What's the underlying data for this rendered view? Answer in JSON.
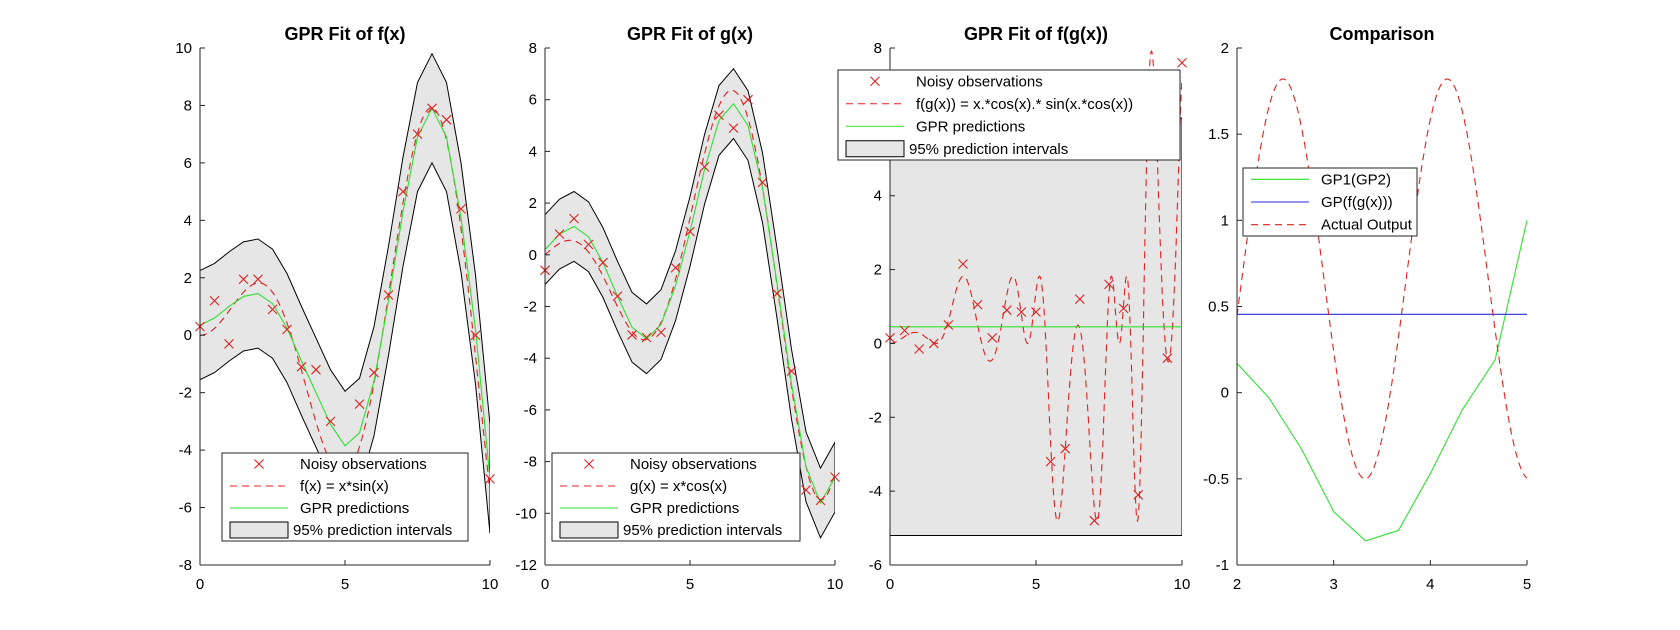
{
  "figure": {
    "colors": {
      "observation": "#e0201f",
      "actual": "#e0201f",
      "gpr": "#2fe02f",
      "band": "#e6e6e6",
      "gp_blue": "#2a2ae0"
    }
  },
  "chart_data": [
    {
      "type": "line",
      "title": "GPR Fit of f(x)",
      "xlim": [
        0,
        10
      ],
      "ylim": [
        -8,
        10
      ],
      "xticks": [
        0,
        5,
        10
      ],
      "yticks": [
        -8,
        -6,
        -4,
        -2,
        0,
        2,
        4,
        6,
        8,
        10
      ],
      "legend_location": "bottom",
      "series": [
        {
          "name": "Noisy observations",
          "style": "markers-x",
          "x": [
            0,
            0.5,
            1,
            1.5,
            2,
            2.5,
            3,
            3.5,
            4,
            4.5,
            5,
            5.5,
            6,
            6.5,
            7,
            7.5,
            8,
            8.5,
            9,
            9.5,
            10
          ],
          "y": [
            0.3,
            1.2,
            -0.3,
            1.95,
            1.95,
            0.9,
            0.2,
            -1.1,
            -1.2,
            -3.0,
            -4.5,
            -2.4,
            -1.3,
            1.4,
            5.0,
            7.0,
            7.9,
            7.5,
            4.4,
            0.0,
            -5.0
          ]
        },
        {
          "name": "f(x) = x*sin(x)",
          "style": "dashed",
          "fn": "f"
        },
        {
          "name": "GPR predictions",
          "style": "solid",
          "x": [
            0,
            0.5,
            1,
            1.5,
            2,
            2.5,
            3,
            3.5,
            4,
            4.5,
            5,
            5.5,
            6,
            6.5,
            7,
            7.5,
            8,
            8.5,
            9,
            9.5,
            10
          ],
          "y": [
            0.35,
            0.6,
            1.0,
            1.35,
            1.45,
            1.1,
            0.25,
            -0.9,
            -2.0,
            -3.1,
            -3.85,
            -3.4,
            -1.6,
            1.2,
            4.3,
            6.9,
            7.9,
            6.9,
            4.1,
            0.2,
            -5.0
          ]
        },
        {
          "name": "95% prediction intervals",
          "style": "band",
          "halfwidth": 1.9
        }
      ]
    },
    {
      "type": "line",
      "title": "GPR Fit of g(x)",
      "xlim": [
        0,
        10
      ],
      "ylim": [
        -12,
        8
      ],
      "xticks": [
        0,
        5,
        10
      ],
      "yticks": [
        -12,
        -10,
        -8,
        -6,
        -4,
        -2,
        0,
        2,
        4,
        6,
        8
      ],
      "legend_location": "bottom",
      "series": [
        {
          "name": "Noisy observations",
          "style": "markers-x",
          "x": [
            0,
            0.5,
            1,
            1.5,
            2,
            2.5,
            3,
            3.5,
            4,
            4.5,
            5,
            5.5,
            6,
            6.5,
            7,
            7.5,
            8,
            8.5,
            9,
            9.5,
            10
          ],
          "y": [
            -0.6,
            0.8,
            1.4,
            0.4,
            -0.3,
            -1.6,
            -3.1,
            -3.2,
            -3.0,
            -0.5,
            0.9,
            3.4,
            5.4,
            4.9,
            6.0,
            2.8,
            -1.5,
            -4.5,
            -9.1,
            -9.5,
            -8.6
          ]
        },
        {
          "name": "g(x) = x*cos(x)",
          "style": "dashed",
          "fn": "g"
        },
        {
          "name": "GPR predictions",
          "style": "solid",
          "x": [
            0,
            0.5,
            1,
            1.5,
            2,
            2.5,
            3,
            3.5,
            4,
            4.5,
            5,
            5.5,
            6,
            6.5,
            7,
            7.5,
            8,
            8.5,
            9,
            9.5,
            10
          ],
          "y": [
            0.2,
            0.8,
            1.1,
            0.7,
            -0.3,
            -1.6,
            -2.8,
            -3.25,
            -2.7,
            -1.2,
            0.9,
            3.3,
            5.2,
            5.85,
            5.0,
            2.6,
            -1.1,
            -5.0,
            -8.2,
            -9.6,
            -8.6
          ]
        },
        {
          "name": "95% prediction intervals",
          "style": "band",
          "halfwidth": 1.35
        }
      ]
    },
    {
      "type": "line",
      "title": "GPR Fit of f(g(x))",
      "xlim": [
        0,
        10
      ],
      "ylim": [
        -6,
        8
      ],
      "xticks": [
        0,
        5,
        10
      ],
      "yticks": [
        -6,
        -4,
        -2,
        0,
        2,
        4,
        6,
        8
      ],
      "legend_location": "top",
      "series": [
        {
          "name": "Noisy observations",
          "style": "markers-x",
          "x": [
            0,
            0.5,
            1,
            1.5,
            2,
            2.5,
            3,
            3.5,
            4,
            4.5,
            5,
            5.5,
            6,
            6.5,
            7,
            7.5,
            8,
            8.5,
            9,
            9.5,
            10
          ],
          "y": [
            0.15,
            0.35,
            -0.15,
            0.0,
            0.5,
            2.15,
            1.05,
            0.15,
            0.9,
            0.85,
            0.85,
            -3.2,
            -2.85,
            1.2,
            -4.8,
            1.6,
            0.95,
            -4.1,
            7.3,
            -0.4,
            7.6
          ]
        },
        {
          "name": "f(g(x)) = x.*cos(x).* sin(x.*cos(x))",
          "style": "dashed",
          "fn": "fg"
        },
        {
          "name": "GPR predictions",
          "style": "solid",
          "x": [
            0,
            10
          ],
          "y": [
            0.45,
            0.45
          ]
        },
        {
          "name": "95% prediction intervals",
          "style": "band",
          "lower": -5.2,
          "upper": 6.1
        }
      ]
    },
    {
      "type": "line",
      "title": "Comparison",
      "xlim": [
        2,
        5
      ],
      "ylim": [
        -1,
        2
      ],
      "xticks": [
        2,
        3,
        4,
        5
      ],
      "yticks": [
        -1,
        -0.5,
        0,
        0.5,
        1,
        1.5,
        2
      ],
      "legend_location": "upper-left",
      "series": [
        {
          "name": "GP1(GP2)",
          "style": "solid-green",
          "x": [
            2,
            2.33,
            2.67,
            3,
            3.33,
            3.67,
            4,
            4.33,
            4.67,
            5
          ],
          "y": [
            0.17,
            -0.03,
            -0.33,
            -0.69,
            -0.86,
            -0.8,
            -0.47,
            -0.1,
            0.19,
            1.0
          ]
        },
        {
          "name": "GP(f(g(x)))",
          "style": "solid-blue",
          "x": [
            2,
            5
          ],
          "y": [
            0.455,
            0.455
          ]
        },
        {
          "name": "Actual Output",
          "style": "dashed",
          "fn": "cmp"
        }
      ]
    }
  ]
}
